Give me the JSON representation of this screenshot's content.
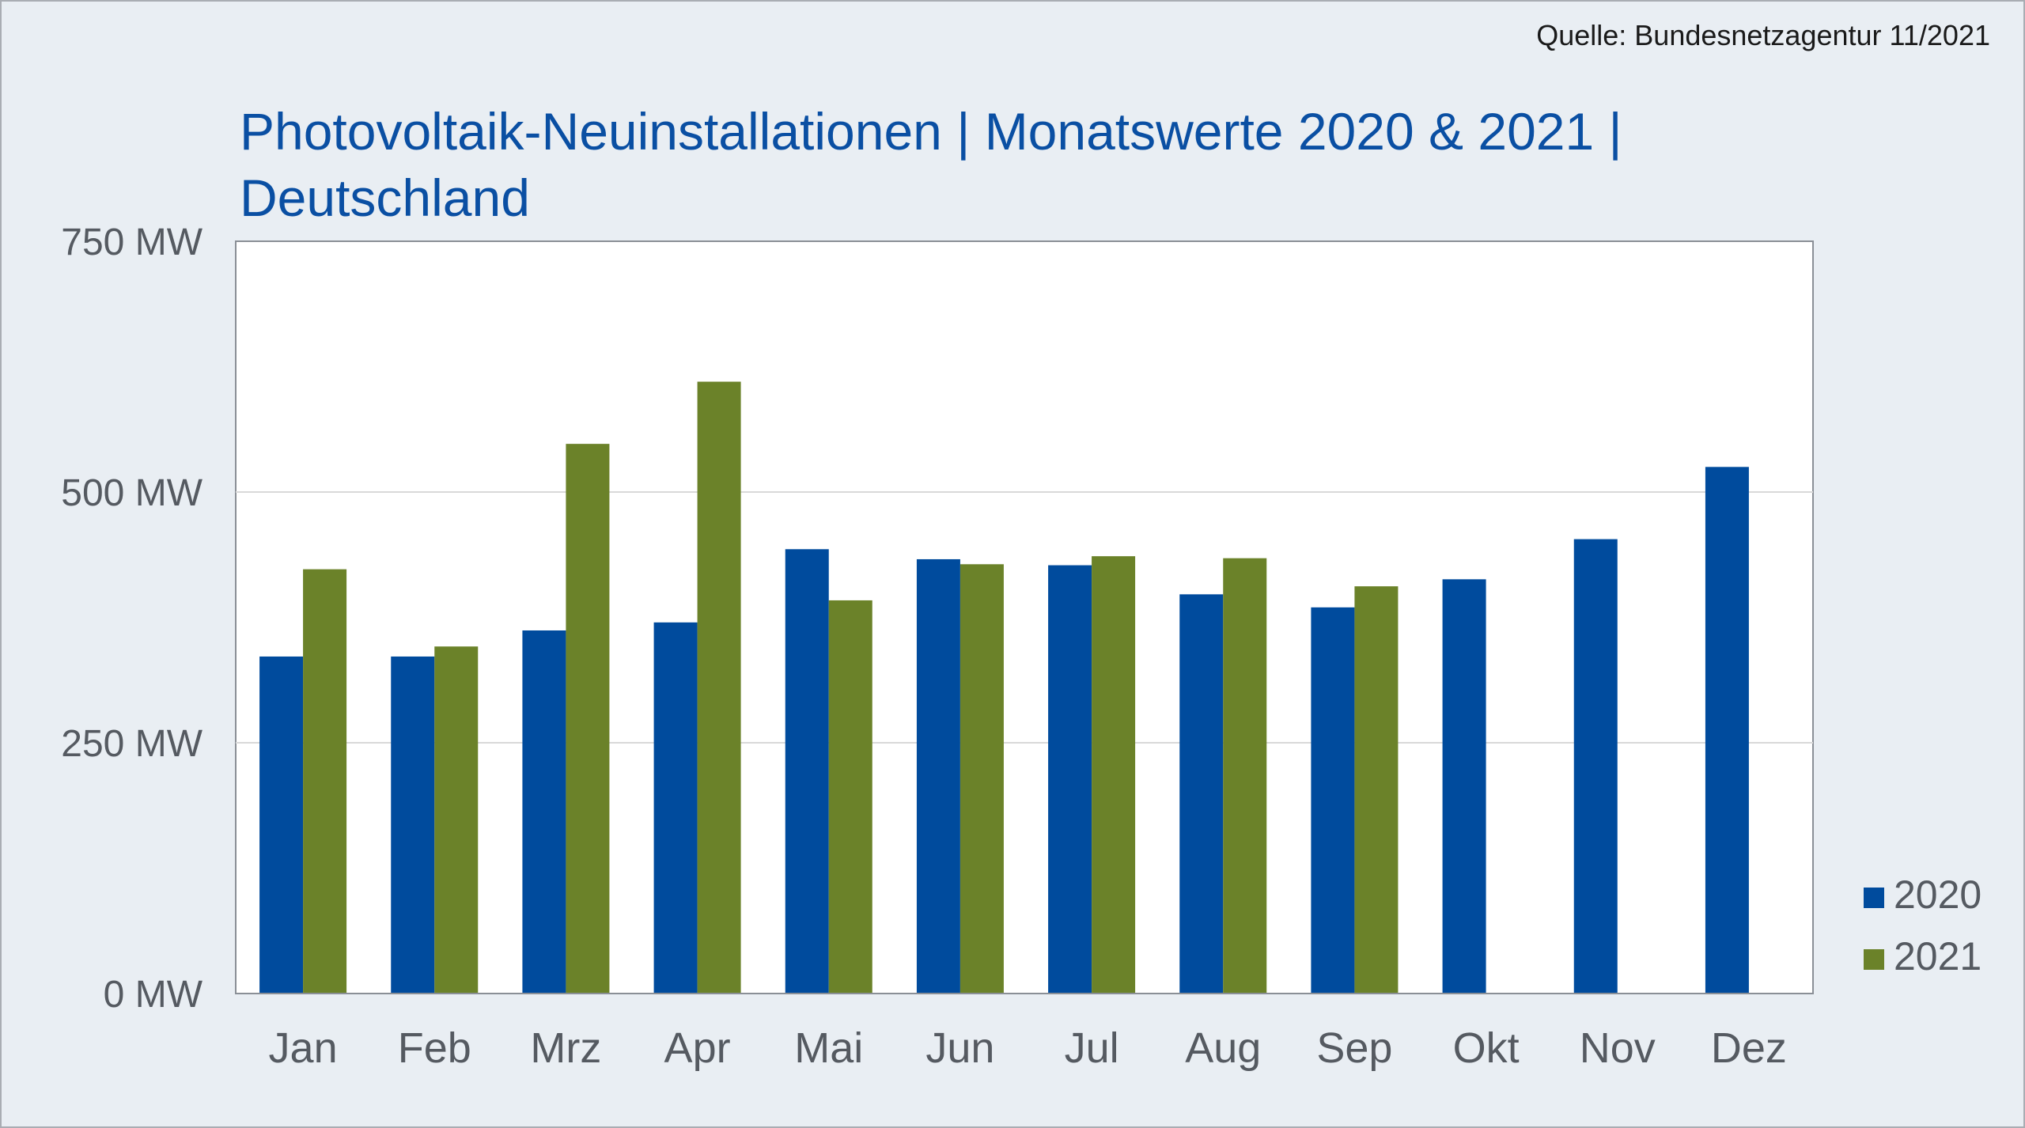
{
  "source": "Quelle: Bundesnetzagentur 11/2021",
  "title_line1": "Photovoltaik-Neuinstallationen | Monatswerte 2020 & 2021 |",
  "title_line2": "Deutschland",
  "colors": {
    "2020": "#004b9d",
    "2021": "#6b8229",
    "title": "#0a4fa3",
    "background": "#e9eef3"
  },
  "chart_data": {
    "type": "bar",
    "title": "Photovoltaik-Neuinstallationen | Monatswerte 2020 & 2021 | Deutschland",
    "categories": [
      "Jan",
      "Feb",
      "Mrz",
      "Apr",
      "Mai",
      "Jun",
      "Jul",
      "Aug",
      "Sep",
      "Okt",
      "Nov",
      "Dez"
    ],
    "series": [
      {
        "name": "2020",
        "values": [
          336,
          336,
          362,
          370,
          443,
          433,
          427,
          398,
          385,
          413,
          453,
          525
        ]
      },
      {
        "name": "2021",
        "values": [
          423,
          346,
          548,
          610,
          392,
          428,
          436,
          434,
          406,
          null,
          null,
          null
        ]
      }
    ],
    "ylim": [
      0,
      750
    ],
    "yticks": [
      0,
      250,
      500,
      750
    ],
    "ytick_labels": [
      "0 MW",
      "250 MW",
      "500 MW",
      "750 MW"
    ],
    "grid": true,
    "legend_position": "bottom-right"
  }
}
